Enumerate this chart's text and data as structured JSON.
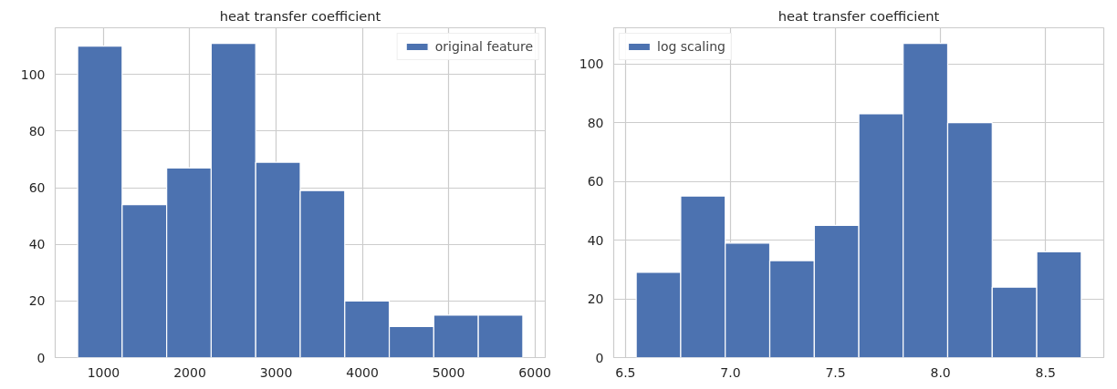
{
  "chart_data": [
    {
      "type": "histogram",
      "title": "heat transfer coefficient",
      "bins": [
        700,
        1216,
        1732,
        2248,
        2764,
        3280,
        3796,
        4312,
        4828,
        5344,
        5860
      ],
      "series": [
        {
          "name": "original feature",
          "color": "#4c72b0",
          "values": [
            110,
            54,
            67,
            111,
            69,
            59,
            20,
            11,
            15,
            15
          ]
        }
      ],
      "xlim": [
        440,
        6120
      ],
      "xticks": [
        1000,
        2000,
        3000,
        4000,
        5000,
        6000
      ],
      "ylim": [
        0,
        116.5
      ],
      "yticks": [
        0,
        20,
        40,
        60,
        80,
        100
      ],
      "grid": true,
      "legend": "top right"
    },
    {
      "type": "histogram",
      "title": "heat transfer coefficient",
      "bins": [
        6.551,
        6.763,
        6.975,
        7.187,
        7.399,
        7.611,
        7.822,
        8.034,
        8.246,
        8.458,
        8.67
      ],
      "series": [
        {
          "name": "log scaling",
          "color": "#4c72b0",
          "values": [
            29,
            55,
            39,
            33,
            45,
            83,
            107,
            80,
            24,
            36
          ]
        }
      ],
      "xlim": [
        6.444,
        8.777
      ],
      "xticks": [
        {
          "value": 6.5,
          "label": "6.5"
        },
        {
          "value": 7.0,
          "label": "7.0"
        },
        {
          "value": 7.5,
          "label": "7.5"
        },
        {
          "value": 8.0,
          "label": "8.0"
        },
        {
          "value": 8.5,
          "label": "8.5"
        }
      ],
      "ylim": [
        0,
        112.3
      ],
      "yticks": [
        0,
        20,
        40,
        60,
        80,
        100
      ],
      "grid": true,
      "legend": "top left"
    }
  ]
}
